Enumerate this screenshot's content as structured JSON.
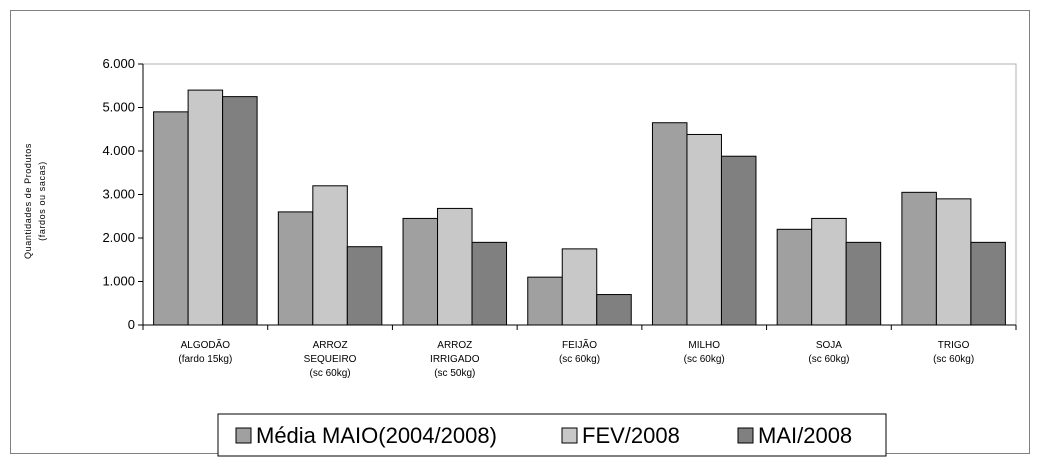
{
  "chart_data": {
    "type": "bar",
    "ylabel": [
      "Quantidades de Produtos",
      "(fardos ou sacas)"
    ],
    "ylim": [
      0,
      6000
    ],
    "yticks": [
      0,
      1000,
      2000,
      3000,
      4000,
      5000,
      6000
    ],
    "ytick_labels": [
      "0",
      "1.000",
      "2.000",
      "3.000",
      "4.000",
      "5.000",
      "6.000"
    ],
    "categories": [
      [
        "ALGODÃO",
        "(fardo 15kg)"
      ],
      [
        "ARROZ",
        "SEQUEIRO",
        "(sc 60kg)"
      ],
      [
        "ARROZ",
        "IRRIGADO",
        "(sc 50kg)"
      ],
      [
        "FEIJÃO",
        "(sc 60kg)"
      ],
      [
        "MILHO",
        "(sc 60kg)"
      ],
      [
        "SOJA",
        "(sc 60kg)"
      ],
      [
        "TRIGO",
        "(sc 60kg)"
      ]
    ],
    "series": [
      {
        "name": "Média MAIO(2004/2008)",
        "color": "#a0a0a0",
        "values": [
          4900,
          2600,
          2450,
          1100,
          4650,
          2200,
          3050
        ]
      },
      {
        "name": "FEV/2008",
        "color": "#c8c8c8",
        "values": [
          5400,
          3200,
          2680,
          1750,
          4380,
          2450,
          2900
        ]
      },
      {
        "name": "MAI/2008",
        "color": "#808080",
        "values": [
          5250,
          1800,
          1900,
          700,
          3880,
          1900,
          1900
        ]
      }
    ],
    "grid": false,
    "legend_position": "bottom"
  }
}
